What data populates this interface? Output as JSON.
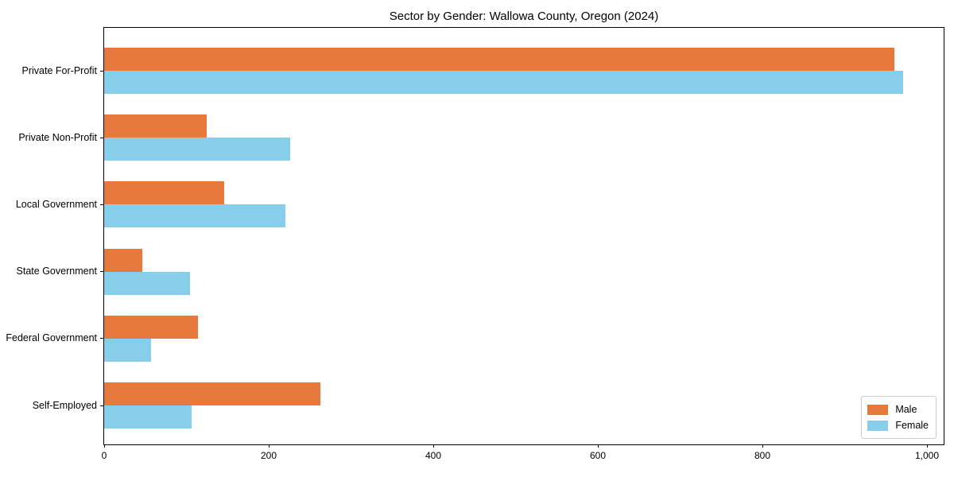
{
  "chart_data": {
    "type": "bar",
    "orientation": "horizontal",
    "title": "Sector by Gender: Wallowa County, Oregon (2024)",
    "categories": [
      "Private For-Profit",
      "Private Non-Profit",
      "Local Government",
      "State Government",
      "Federal Government",
      "Self-Employed"
    ],
    "series": [
      {
        "name": "Male",
        "color": "#e8793d",
        "values": [
          960,
          125,
          146,
          46,
          114,
          263
        ]
      },
      {
        "name": "Female",
        "color": "#87ceeb",
        "values": [
          971,
          226,
          220,
          104,
          57,
          106
        ]
      }
    ],
    "xlabel": "",
    "ylabel": "",
    "xlim": [
      0,
      1022
    ],
    "xticks": [
      0,
      200,
      400,
      600,
      800,
      1000
    ],
    "xtick_labels": [
      "0",
      "200",
      "400",
      "600",
      "800",
      "1,000"
    ],
    "legend": {
      "position": "lower right",
      "entries": [
        "Male",
        "Female"
      ]
    },
    "grid": false,
    "background_color": "#ffffff",
    "text_color": "#000000"
  }
}
